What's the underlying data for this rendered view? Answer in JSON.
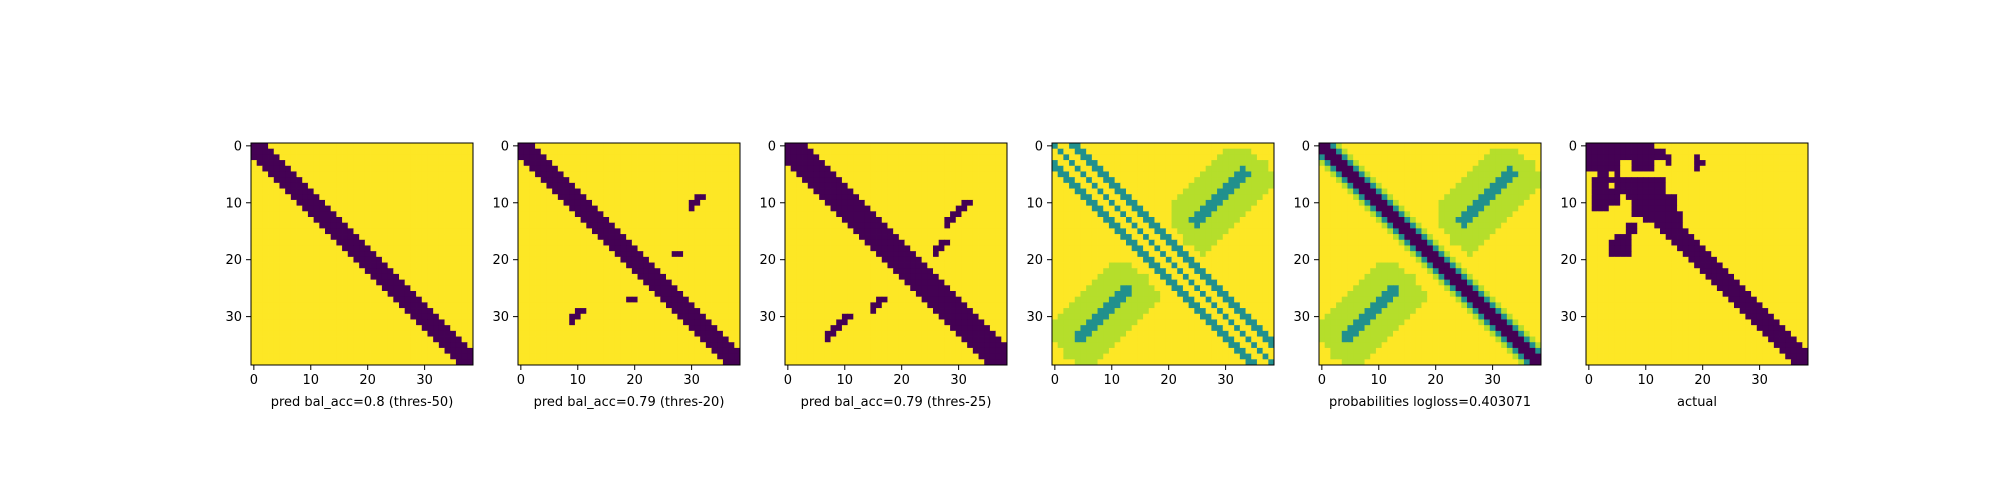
{
  "figure": {
    "background": "#ffffff",
    "colormap": {
      "low": "#440154",
      "mid": "#21908d",
      "light": "#b5de2b",
      "high": "#fde725"
    }
  },
  "chart_data": [
    {
      "type": "heatmap",
      "xlabel": "pred bal_acc=0.8 (thres-50)",
      "size": 39,
      "xticks": [
        0,
        10,
        20,
        30
      ],
      "yticks": [
        0,
        10,
        20,
        30
      ],
      "pattern": "binary",
      "diagonals": [
        {
          "halfwidth": 2
        }
      ],
      "blobs": []
    },
    {
      "type": "heatmap",
      "xlabel": "pred bal_acc=0.79 (thres-20)",
      "size": 39,
      "xticks": [
        0,
        10,
        20,
        30
      ],
      "yticks": [
        0,
        10,
        20,
        30
      ],
      "pattern": "binary",
      "diagonals": [
        {
          "halfwidth": 2
        }
      ],
      "blobs": [
        {
          "x": 31,
          "y": 9,
          "count": 4
        },
        {
          "x": 10,
          "y": 29,
          "count": 4
        },
        {
          "x": 27,
          "y": 19,
          "count": 1
        },
        {
          "x": 19,
          "y": 27,
          "count": 1
        }
      ]
    },
    {
      "type": "heatmap",
      "xlabel": "pred bal_acc=0.79 (thres-25)",
      "size": 39,
      "xticks": [
        0,
        10,
        20,
        30
      ],
      "yticks": [
        0,
        10,
        20,
        30
      ],
      "pattern": "binary",
      "diagonals": [
        {
          "halfwidth": 3
        }
      ],
      "blobs": [
        {
          "x": 31,
          "y": 10,
          "count": 8
        },
        {
          "x": 10,
          "y": 30,
          "count": 8
        },
        {
          "x": 27,
          "y": 17,
          "count": 4
        },
        {
          "x": 16,
          "y": 27,
          "count": 4
        }
      ]
    },
    {
      "type": "heatmap",
      "xlabel": "",
      "size": 39,
      "xticks": [
        0,
        10,
        20,
        30
      ],
      "yticks": [
        0,
        10,
        20,
        30
      ],
      "pattern": "probabilities-lines",
      "diagonals": [],
      "blobs": []
    },
    {
      "type": "heatmap",
      "xlabel": "probabilities logloss=0.403071",
      "size": 39,
      "xticks": [
        0,
        10,
        20,
        30
      ],
      "yticks": [
        0,
        10,
        20,
        30
      ],
      "pattern": "probabilities-band",
      "diagonals": [
        {
          "halfwidth": 2
        }
      ],
      "blobs": []
    },
    {
      "type": "heatmap",
      "xlabel": "actual",
      "size": 39,
      "xticks": [
        0,
        10,
        20,
        30
      ],
      "yticks": [
        0,
        10,
        20,
        30
      ],
      "pattern": "actual",
      "diagonals": [
        {
          "halfwidth": 2
        }
      ],
      "blobs": []
    }
  ]
}
